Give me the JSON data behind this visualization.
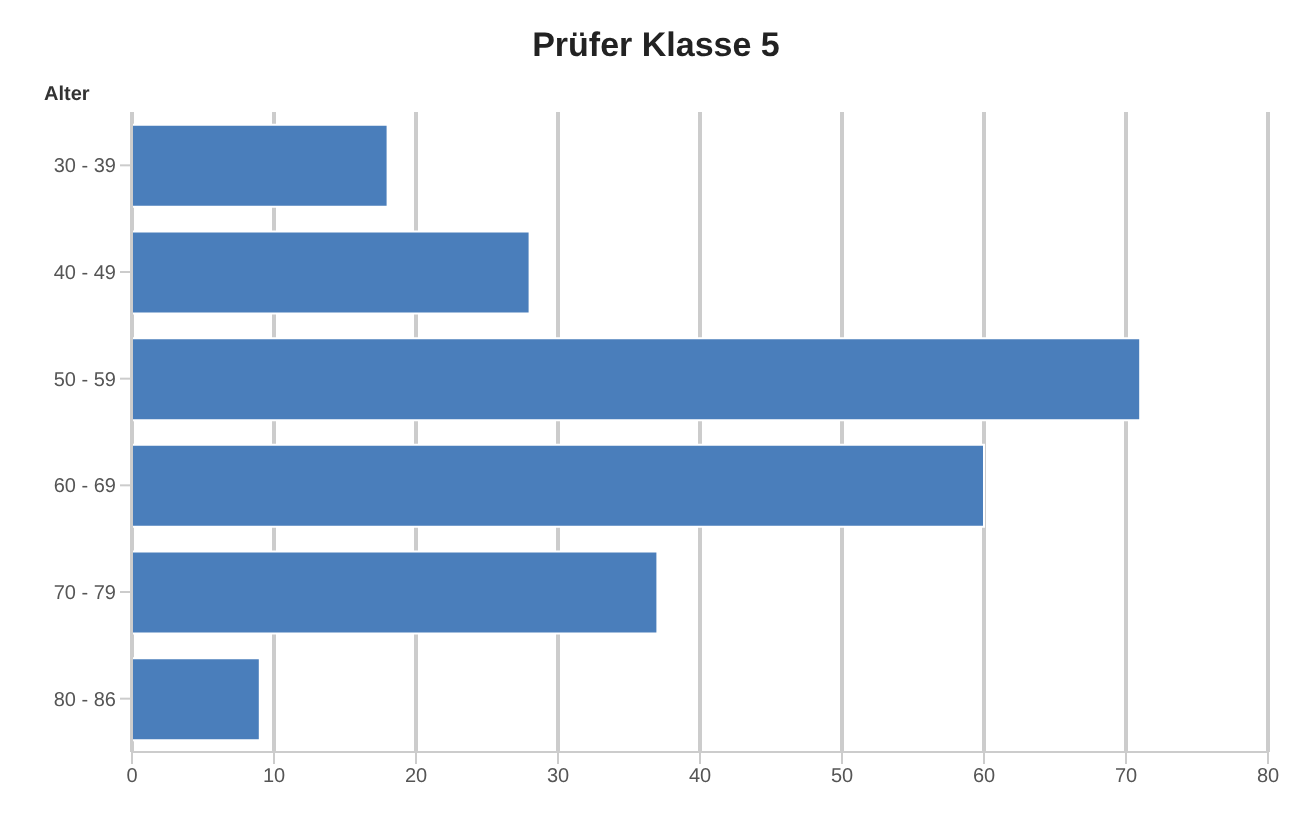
{
  "chart_data": {
    "type": "bar",
    "orientation": "horizontal",
    "title": "Prüfer Klasse 5",
    "ylabel": "Alter",
    "categories": [
      "30 - 39",
      "40 - 49",
      "50 - 59",
      "60 - 69",
      "70 - 79",
      "80 - 86"
    ],
    "values": [
      18,
      28,
      71,
      60,
      37,
      9
    ],
    "color": "#4a7ebb",
    "xlim": [
      0,
      80
    ],
    "xticks": [
      0,
      10,
      20,
      30,
      40,
      50,
      60,
      70,
      80
    ],
    "grid": "x"
  }
}
